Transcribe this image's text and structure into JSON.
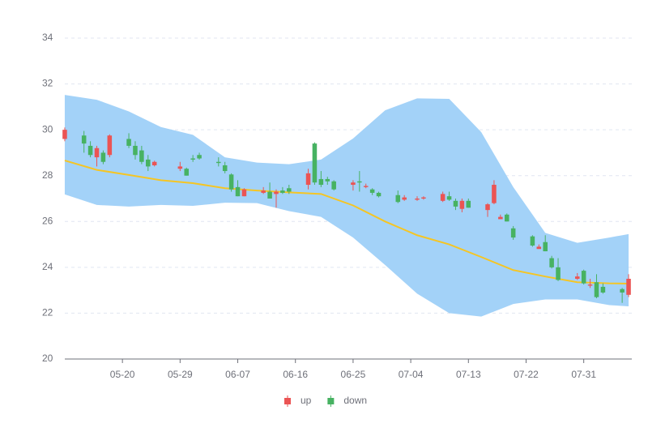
{
  "chart_data": {
    "type": "candlestick",
    "x": [
      "05-11",
      "05-14",
      "05-15",
      "05-16",
      "05-17",
      "05-18",
      "05-21",
      "05-22",
      "05-23",
      "05-24",
      "05-25",
      "05-29",
      "05-30",
      "05-31",
      "06-01",
      "06-04",
      "06-05",
      "06-06",
      "06-07",
      "06-08",
      "06-11",
      "06-12",
      "06-13",
      "06-14",
      "06-15",
      "06-18",
      "06-19",
      "06-20",
      "06-21",
      "06-22",
      "06-25",
      "06-26",
      "06-27",
      "06-28",
      "06-29",
      "07-02",
      "07-03",
      "07-05",
      "07-06",
      "07-09",
      "07-10",
      "07-11",
      "07-12",
      "07-13",
      "07-16",
      "07-17",
      "07-18",
      "07-19",
      "07-20",
      "07-23",
      "07-24",
      "07-25",
      "07-26",
      "07-27",
      "07-30",
      "07-31",
      "08-01",
      "08-02",
      "08-03",
      "08-06",
      "08-07"
    ],
    "open": [
      29.6,
      29.75,
      29.3,
      28.8,
      29.0,
      28.9,
      29.6,
      29.3,
      29.1,
      28.7,
      28.45,
      28.3,
      28.3,
      28.75,
      28.9,
      28.6,
      28.45,
      28.05,
      27.5,
      27.1,
      27.25,
      27.3,
      27.2,
      27.35,
      27.45,
      27.6,
      29.4,
      27.85,
      27.85,
      27.75,
      27.6,
      27.75,
      27.5,
      27.4,
      27.25,
      27.15,
      26.95,
      26.95,
      27.0,
      26.9,
      27.1,
      26.9,
      26.55,
      26.9,
      26.5,
      26.8,
      26.1,
      26.3,
      25.7,
      25.35,
      24.8,
      25.1,
      24.4,
      24.0,
      23.5,
      23.85,
      23.2,
      23.35,
      23.15,
      23.05,
      22.8
    ],
    "close": [
      30.0,
      29.4,
      28.9,
      29.2,
      28.6,
      29.75,
      29.3,
      28.9,
      28.6,
      28.4,
      28.6,
      28.4,
      28.0,
      28.7,
      28.75,
      28.55,
      28.2,
      27.4,
      27.1,
      27.4,
      27.35,
      27.0,
      27.3,
      27.25,
      27.3,
      28.1,
      27.7,
      27.6,
      27.75,
      27.4,
      27.7,
      27.7,
      27.55,
      27.25,
      27.1,
      26.85,
      27.05,
      27.0,
      27.05,
      27.2,
      26.95,
      26.65,
      26.9,
      26.6,
      26.75,
      27.6,
      26.2,
      26.0,
      25.3,
      24.95,
      24.9,
      24.7,
      24.0,
      23.45,
      23.6,
      23.3,
      23.25,
      22.7,
      22.9,
      22.9,
      23.5
    ],
    "low": [
      29.5,
      29.0,
      28.8,
      28.4,
      28.5,
      28.8,
      29.2,
      28.7,
      28.5,
      28.2,
      28.4,
      28.2,
      28.0,
      28.6,
      28.7,
      28.4,
      28.1,
      27.3,
      27.1,
      27.1,
      27.2,
      27.0,
      26.6,
      27.2,
      27.2,
      27.4,
      27.6,
      27.5,
      27.6,
      27.35,
      27.35,
      27.3,
      27.45,
      27.15,
      27.05,
      26.8,
      26.9,
      26.9,
      26.95,
      26.85,
      26.9,
      26.5,
      26.4,
      26.6,
      26.2,
      26.75,
      26.1,
      26.0,
      25.2,
      24.9,
      24.8,
      24.7,
      23.95,
      23.4,
      23.45,
      23.25,
      23.1,
      22.65,
      22.85,
      22.45,
      22.7
    ],
    "high": [
      30.1,
      29.95,
      29.5,
      29.3,
      29.1,
      29.8,
      29.85,
      29.5,
      29.3,
      28.9,
      28.65,
      28.6,
      28.35,
      28.9,
      29.0,
      28.8,
      28.6,
      28.1,
      27.8,
      27.45,
      27.5,
      27.7,
      27.4,
      27.5,
      27.6,
      28.3,
      29.45,
      28.2,
      27.95,
      27.8,
      27.8,
      28.2,
      27.65,
      27.45,
      27.3,
      27.35,
      27.15,
      27.1,
      27.1,
      27.3,
      27.3,
      27.0,
      27.0,
      27.0,
      26.8,
      27.8,
      26.3,
      26.35,
      25.8,
      25.4,
      25.0,
      25.4,
      24.5,
      24.4,
      23.75,
      23.9,
      23.5,
      23.7,
      23.3,
      23.1,
      23.7
    ],
    "series": [
      {
        "name": "up",
        "color": "#eb5454"
      },
      {
        "name": "down",
        "color": "#47b262"
      }
    ],
    "band": {
      "x": [
        "05-11",
        "05-16",
        "05-21",
        "05-26",
        "05-31",
        "06-05",
        "06-10",
        "06-15",
        "06-20",
        "06-25",
        "06-30",
        "07-05",
        "07-10",
        "07-15",
        "07-20",
        "07-25",
        "07-30",
        "08-04",
        "08-07"
      ],
      "upper": [
        31.52,
        31.31,
        30.8,
        30.12,
        29.78,
        28.8,
        28.57,
        28.5,
        28.7,
        29.62,
        30.85,
        31.37,
        31.35,
        29.9,
        27.5,
        25.5,
        25.07,
        25.3,
        25.45
      ],
      "middle": [
        28.66,
        28.25,
        28.03,
        27.8,
        27.67,
        27.45,
        27.35,
        27.27,
        27.2,
        26.7,
        26.0,
        25.4,
        25.0,
        24.45,
        23.88,
        23.6,
        23.35,
        23.3,
        23.29
      ],
      "lower": [
        27.18,
        26.72,
        26.65,
        26.72,
        26.68,
        26.82,
        26.8,
        26.45,
        26.2,
        25.3,
        24.1,
        22.85,
        22.0,
        21.85,
        22.4,
        22.6,
        22.6,
        22.35,
        22.3
      ],
      "fill": "#a3d2f8",
      "line_color": "#f5c524"
    },
    "xlim": [
      "05-11",
      "08-07"
    ],
    "xticks": [
      "05-20",
      "05-29",
      "06-07",
      "06-16",
      "06-25",
      "07-04",
      "07-13",
      "07-22",
      "07-31"
    ],
    "ylim": [
      20,
      34
    ],
    "yticks": [
      20,
      22,
      24,
      26,
      28,
      30,
      32,
      34
    ],
    "grid": true,
    "legend": "bottom"
  }
}
